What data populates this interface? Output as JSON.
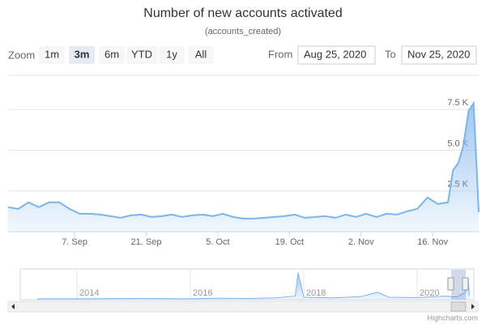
{
  "chart_data": {
    "type": "area",
    "title": "Number of new accounts activated",
    "subtitle": "(accounts_created)",
    "color": "#7cb5ec",
    "grid": true,
    "range_selector": {
      "label": "Zoom",
      "buttons": [
        "1m",
        "3m",
        "6m",
        "YTD",
        "1y",
        "All"
      ],
      "selected": 1,
      "from_label": "From",
      "from": "Aug 25, 2020",
      "to_label": "To",
      "to": "Nov 25, 2020"
    },
    "x": [
      "2020-08-25",
      "2020-08-27",
      "2020-08-29",
      "2020-08-31",
      "2020-09-02",
      "2020-09-04",
      "2020-09-06",
      "2020-09-08",
      "2020-09-10",
      "2020-09-12",
      "2020-09-14",
      "2020-09-16",
      "2020-09-18",
      "2020-09-20",
      "2020-09-22",
      "2020-09-24",
      "2020-09-26",
      "2020-09-28",
      "2020-09-30",
      "2020-10-02",
      "2020-10-04",
      "2020-10-06",
      "2020-10-08",
      "2020-10-10",
      "2020-10-12",
      "2020-10-14",
      "2020-10-16",
      "2020-10-18",
      "2020-10-20",
      "2020-10-22",
      "2020-10-24",
      "2020-10-26",
      "2020-10-28",
      "2020-10-30",
      "2020-11-01",
      "2020-11-03",
      "2020-11-05",
      "2020-11-07",
      "2020-11-09",
      "2020-11-11",
      "2020-11-13",
      "2020-11-15",
      "2020-11-17",
      "2020-11-19",
      "2020-11-20",
      "2020-11-21",
      "2020-11-22",
      "2020-11-23",
      "2020-11-24",
      "2020-11-25"
    ],
    "values": [
      1500,
      1400,
      1800,
      1500,
      1800,
      1800,
      1400,
      1100,
      1100,
      1050,
      950,
      850,
      1000,
      1050,
      900,
      950,
      1050,
      900,
      1000,
      1050,
      950,
      1100,
      900,
      800,
      800,
      850,
      900,
      950,
      1050,
      850,
      900,
      950,
      850,
      1050,
      900,
      1100,
      900,
      1100,
      1050,
      1250,
      1400,
      2100,
      1700,
      1800,
      3800,
      4200,
      5300,
      7400,
      7900,
      1200
    ],
    "xlim": [
      "2020-08-25",
      "2020-11-25"
    ],
    "xticks": [
      {
        "value": "2020-09-07",
        "label": "7. Sep"
      },
      {
        "value": "2020-09-21",
        "label": "21. Sep"
      },
      {
        "value": "2020-10-05",
        "label": "5. Oct"
      },
      {
        "value": "2020-10-19",
        "label": "19. Oct"
      },
      {
        "value": "2020-11-02",
        "label": "2. Nov"
      },
      {
        "value": "2020-11-16",
        "label": "16. Nov"
      }
    ],
    "ylim": [
      0,
      9600
    ],
    "yticks": [
      {
        "value": 2500,
        "label": "2.5 K"
      },
      {
        "value": 5000,
        "label": "5.0 K"
      },
      {
        "value": 7500,
        "label": "7.5 K"
      }
    ],
    "navigator": {
      "x": [
        2013.3,
        2014,
        2015,
        2016,
        2016.5,
        2017,
        2017.5,
        2017.85,
        2017.9,
        2017.95,
        2018,
        2018.5,
        2019,
        2019.3,
        2019.5,
        2020,
        2020.5,
        2020.7,
        2020.85,
        2020.9,
        2020.92
      ],
      "values": [
        300,
        300,
        400,
        300,
        500,
        400,
        600,
        1200,
        9000,
        5000,
        800,
        600,
        1000,
        2500,
        800,
        700,
        1200,
        900,
        2500,
        7500,
        1200
      ],
      "xlim": [
        2013,
        2021
      ],
      "ylim": [
        0,
        10000
      ],
      "xticks": [
        2014,
        2016,
        2018,
        2020
      ]
    },
    "credits": "Highcharts.com"
  }
}
